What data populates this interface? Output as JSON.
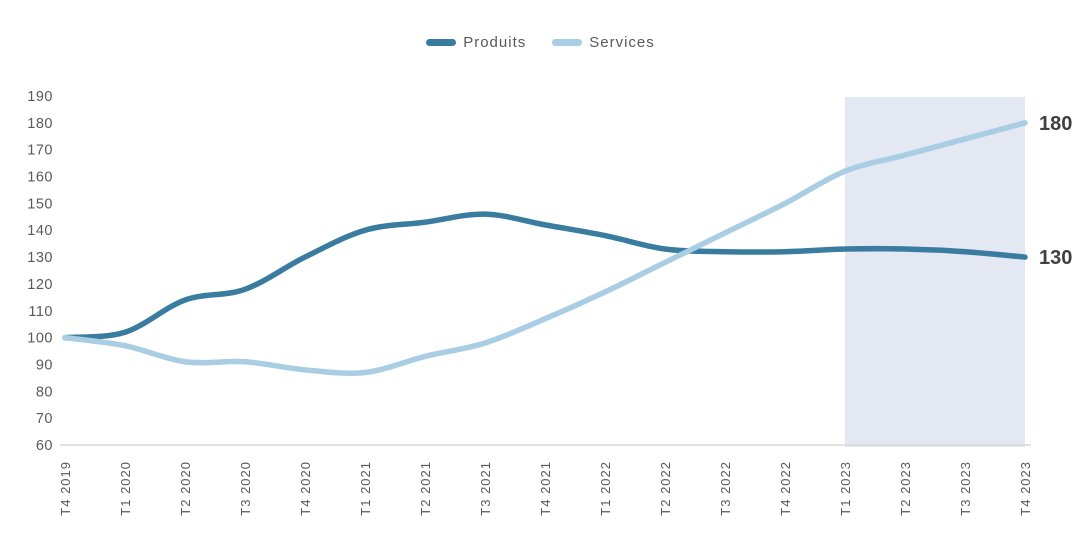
{
  "chart_data": {
    "type": "line",
    "title": "",
    "xlabel": "",
    "ylabel": "",
    "categories": [
      "T4 2019",
      "T1 2020",
      "T2 2020",
      "T3 2020",
      "T4 2020",
      "T1 2021",
      "T2 2021",
      "T3 2021",
      "T4 2021",
      "T1 2022",
      "T2 2022",
      "T3 2022",
      "T4 2022",
      "T1 2023",
      "T2 2023",
      "T3 2023",
      "T4 2023"
    ],
    "series": [
      {
        "name": "Produits",
        "color": "#3a7c9f",
        "values": [
          100,
          102,
          114,
          118,
          130,
          140,
          143,
          146,
          142,
          138,
          133,
          132,
          132,
          133,
          133,
          132,
          130
        ],
        "end_label": "130"
      },
      {
        "name": "Services",
        "color": "#a9cde2",
        "values": [
          100,
          97,
          91,
          91,
          88,
          87,
          93,
          98,
          107,
          117,
          128,
          139,
          150,
          162,
          168,
          174,
          180
        ],
        "end_label": "180"
      }
    ],
    "ylim": [
      60,
      190
    ],
    "yticks": [
      190,
      180,
      170,
      160,
      150,
      140,
      130,
      120,
      110,
      100,
      90,
      80,
      70,
      60
    ],
    "grid": false,
    "legend_position": "top",
    "highlight_region": {
      "from": "T1 2023",
      "to": "T4 2023",
      "color": "#e3e8f3"
    },
    "axis_color": "#d8d8d8",
    "tick_label_color": "#595959",
    "end_label_color": "#404040"
  }
}
